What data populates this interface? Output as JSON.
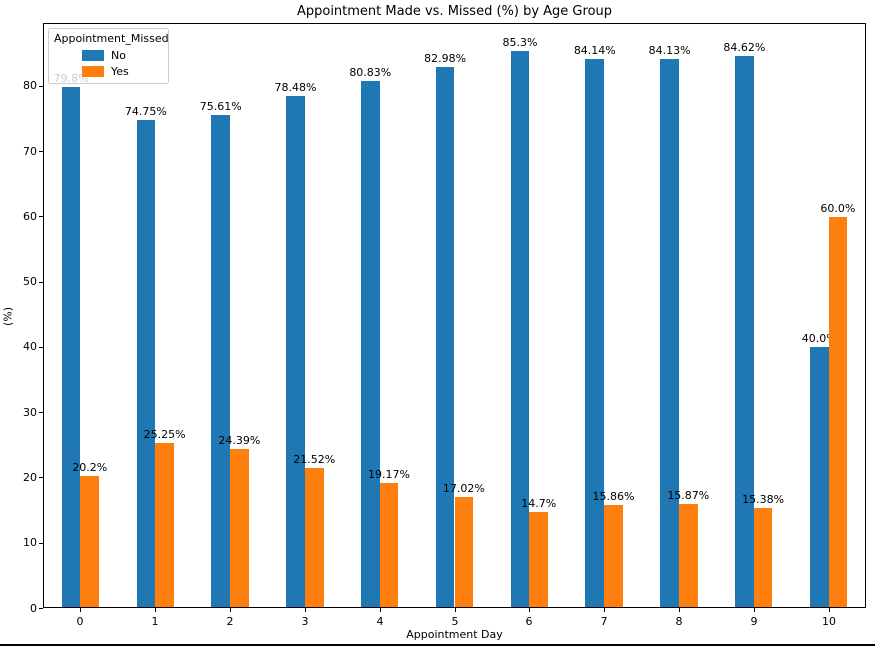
{
  "figure": {
    "background": "#ffffff",
    "bottom_rule_color": "#000000"
  },
  "legend": {
    "title": "Appointment_Missed",
    "position": "upper left",
    "entries": [
      {
        "label": "No",
        "color": "#1f77b4"
      },
      {
        "label": "Yes",
        "color": "#ff7f0e"
      }
    ]
  },
  "chart_data": {
    "type": "bar",
    "title": "Appointment Made vs. Missed (%) by Age Group",
    "xlabel": "Appointment Day",
    "ylabel": "(%)",
    "categories": [
      "0",
      "1",
      "2",
      "3",
      "4",
      "5",
      "6",
      "7",
      "8",
      "9",
      "10"
    ],
    "series": [
      {
        "name": "No",
        "color": "#1f77b4",
        "values": [
          79.8,
          74.75,
          75.61,
          78.48,
          80.83,
          82.98,
          85.3,
          84.14,
          84.13,
          84.62,
          40.0
        ],
        "labels": [
          "79.8%",
          "74.75%",
          "75.61%",
          "78.48%",
          "80.83%",
          "82.98%",
          "85.3%",
          "84.14%",
          "84.13%",
          "84.62%",
          "40.0%"
        ]
      },
      {
        "name": "Yes",
        "color": "#ff7f0e",
        "values": [
          20.2,
          25.25,
          24.39,
          21.52,
          19.17,
          17.02,
          14.7,
          15.86,
          15.87,
          15.38,
          60.0
        ],
        "labels": [
          "20.2%",
          "25.25%",
          "24.39%",
          "21.52%",
          "19.17%",
          "17.02%",
          "14.7%",
          "15.86%",
          "15.87%",
          "15.38%",
          "60.0%"
        ]
      }
    ],
    "yticks": [
      0,
      10,
      20,
      30,
      40,
      50,
      60,
      70,
      80
    ],
    "ylim": [
      0,
      89.65
    ],
    "grid": false,
    "legend_position": "upper left"
  }
}
